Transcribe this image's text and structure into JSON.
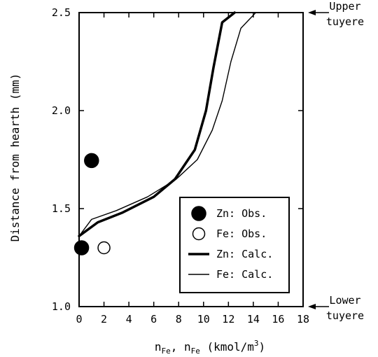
{
  "chart_data": {
    "type": "scatter",
    "title": "",
    "xlabel": "nFe, nFe (kmol/m3)",
    "xlabel_parts": {
      "n1": "n",
      "s1": "Fe",
      "sep": ", ",
      "n2": "n",
      "s2": "Fe",
      "unit": " (kmol/m",
      "exp": "3",
      "close": ")"
    },
    "ylabel": "Distance from hearth (mm)",
    "xlim": [
      0,
      18
    ],
    "ylim": [
      1.0,
      2.5
    ],
    "x_ticks": [
      "0",
      "2",
      "4",
      "6",
      "8",
      "10",
      "12",
      "14",
      "16",
      "18"
    ],
    "y_ticks": [
      "1.0",
      "1.5",
      "2.0",
      "2.5"
    ],
    "grid": false,
    "legend_position": "bottom-right",
    "series": [
      {
        "name": "Zn: Obs.",
        "kind": "points",
        "marker": "filled-circle",
        "points": [
          {
            "x": 1.0,
            "y": 1.745
          },
          {
            "x": 0.2,
            "y": 1.3
          }
        ]
      },
      {
        "name": "Fe: Obs.",
        "kind": "points",
        "marker": "open-circle",
        "points": [
          {
            "x": 2.0,
            "y": 1.3
          }
        ]
      },
      {
        "name": "Zn: Calc.",
        "kind": "line",
        "style": "thick",
        "points": [
          {
            "x": 0.0,
            "y": 1.36
          },
          {
            "x": 1.5,
            "y": 1.43
          },
          {
            "x": 3.5,
            "y": 1.48
          },
          {
            "x": 6.0,
            "y": 1.56
          },
          {
            "x": 7.7,
            "y": 1.65
          },
          {
            "x": 9.3,
            "y": 1.8
          },
          {
            "x": 10.2,
            "y": 2.0
          },
          {
            "x": 10.8,
            "y": 2.22
          },
          {
            "x": 11.5,
            "y": 2.45
          },
          {
            "x": 12.5,
            "y": 2.5
          }
        ]
      },
      {
        "name": "Fe: Calc.",
        "kind": "line",
        "style": "thin",
        "points": [
          {
            "x": 0.0,
            "y": 1.36
          },
          {
            "x": 1.0,
            "y": 1.445
          },
          {
            "x": 3.0,
            "y": 1.49
          },
          {
            "x": 5.5,
            "y": 1.56
          },
          {
            "x": 7.8,
            "y": 1.65
          },
          {
            "x": 9.5,
            "y": 1.75
          },
          {
            "x": 10.7,
            "y": 1.9
          },
          {
            "x": 11.5,
            "y": 2.05
          },
          {
            "x": 12.2,
            "y": 2.25
          },
          {
            "x": 13.0,
            "y": 2.42
          },
          {
            "x": 14.2,
            "y": 2.5
          }
        ]
      }
    ],
    "annotations": [
      {
        "lines": [
          "Upper",
          "tuyere"
        ],
        "at_y": 2.5
      },
      {
        "lines": [
          "Lower",
          "tuyere"
        ],
        "at_y": 1.0
      }
    ]
  }
}
